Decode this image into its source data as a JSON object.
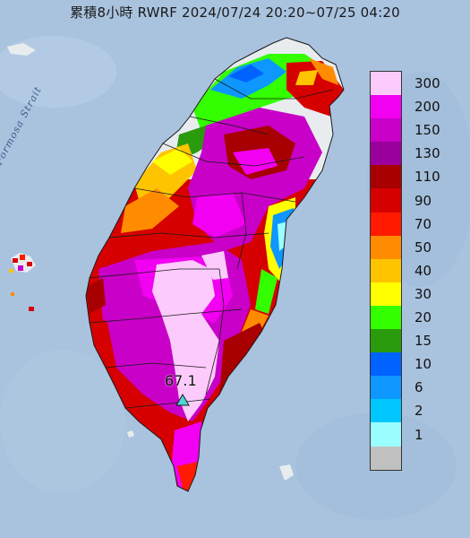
{
  "title": "累積8小時 RWRF 2024/07/24 20:20~07/25 04:20",
  "strait_label": "Formosa Strait",
  "station": {
    "value_label": "67.1",
    "marker_color": "#4fd6d6"
  },
  "legend": [
    {
      "label": "300",
      "color": "#fccbfc"
    },
    {
      "label": "200",
      "color": "#f200f2"
    },
    {
      "label": "150",
      "color": "#c800c8"
    },
    {
      "label": "130",
      "color": "#9c009c"
    },
    {
      "label": "110",
      "color": "#a80000"
    },
    {
      "label": "90",
      "color": "#d60000"
    },
    {
      "label": "70",
      "color": "#ff1a00"
    },
    {
      "label": "50",
      "color": "#ff8c00"
    },
    {
      "label": "40",
      "color": "#ffc400"
    },
    {
      "label": "30",
      "color": "#ffff00"
    },
    {
      "label": "20",
      "color": "#33ff00"
    },
    {
      "label": "15",
      "color": "#2a9b0c"
    },
    {
      "label": "10",
      "color": "#0062ff"
    },
    {
      "label": "6",
      "color": "#0d97ff"
    },
    {
      "label": "2",
      "color": "#00c8ff"
    },
    {
      "label": "1",
      "color": "#9cffff"
    },
    {
      "label": "",
      "color": "#c0c0c0"
    }
  ],
  "colors": {
    "sea": "#a9c3df",
    "land": "#e8ecef",
    "boundary": "#1a1a1a"
  }
}
